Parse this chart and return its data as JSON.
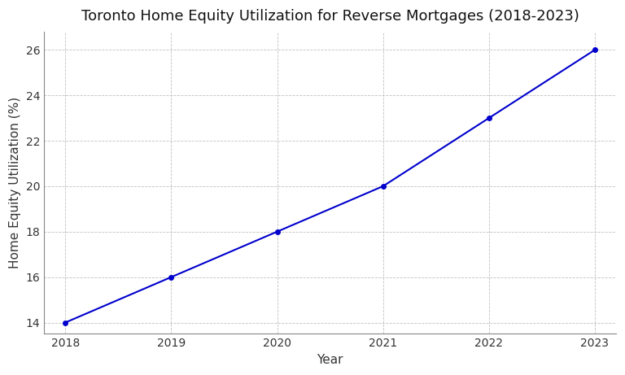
{
  "title": "Toronto Home Equity Utilization for Reverse Mortgages (2018-2023)",
  "xlabel": "Year",
  "ylabel": "Home Equity Utilization (%)",
  "x": [
    2018,
    2019,
    2020,
    2021,
    2022,
    2023
  ],
  "y": [
    14,
    16,
    18,
    20,
    23,
    26
  ],
  "line_color": "#0000cc",
  "marker_color": "#0000cc",
  "marker_size": 4,
  "line_width": 1.5,
  "ylim": [
    13.5,
    26.8
  ],
  "xlim": [
    2017.8,
    2023.2
  ],
  "yticks": [
    14,
    16,
    18,
    20,
    22,
    24,
    26
  ],
  "xticks": [
    2018,
    2019,
    2020,
    2021,
    2022,
    2023
  ],
  "grid_color": "#c0c0c0",
  "grid_style": "--",
  "background_color": "#ffffff",
  "title_fontsize": 13,
  "label_fontsize": 11,
  "tick_fontsize": 10
}
